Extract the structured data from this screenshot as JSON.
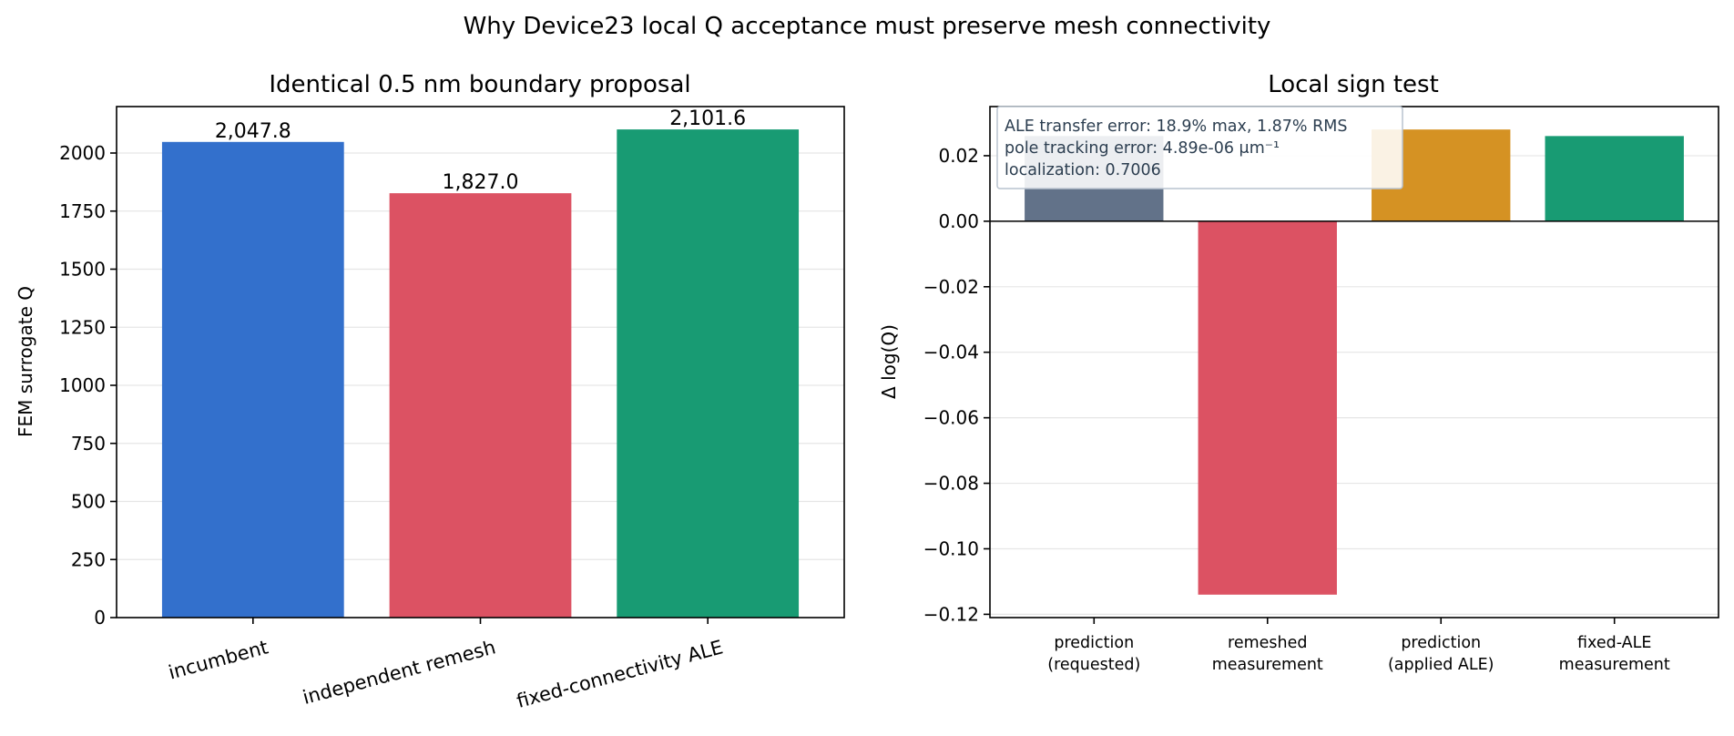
{
  "figure": {
    "title": "Why Device23 local Q acceptance must preserve mesh connectivity"
  },
  "chart_data": [
    {
      "type": "bar",
      "title": "Identical 0.5 nm boundary proposal",
      "xlabel": "",
      "ylabel": "FEM surrogate Q",
      "categories": [
        "incumbent",
        "independent remesh",
        "fixed-connectivity ALE"
      ],
      "values": [
        2047.8,
        1827.0,
        2101.6
      ],
      "value_labels": [
        "2,047.8",
        "1,827.0",
        "2,101.6"
      ],
      "colors": [
        "#3370cc",
        "#dc5263",
        "#189b73"
      ],
      "ylim": [
        0,
        2200
      ],
      "yticks": [
        0,
        250,
        500,
        750,
        1000,
        1250,
        1500,
        1750,
        2000
      ],
      "ytick_labels": [
        "0",
        "250",
        "500",
        "750",
        "1000",
        "1250",
        "1500",
        "1750",
        "2000"
      ],
      "grid": true
    },
    {
      "type": "bar",
      "title": "Local sign test",
      "xlabel": "",
      "ylabel": "Δ log(Q)",
      "categories": [
        [
          "prediction",
          "(requested)"
        ],
        [
          "remeshed",
          "measurement"
        ],
        [
          "prediction",
          "(applied ALE)"
        ],
        [
          "fixed-ALE",
          "measurement"
        ]
      ],
      "values": [
        0.026,
        -0.114,
        0.028,
        0.026
      ],
      "colors": [
        "#627289",
        "#dc5263",
        "#d59223",
        "#189b73"
      ],
      "ylim": [
        -0.121,
        0.035
      ],
      "yticks": [
        0.02,
        0.0,
        -0.02,
        -0.04,
        -0.06,
        -0.08,
        -0.1,
        -0.12
      ],
      "ytick_labels": [
        "0.02",
        "0.00",
        "−0.02",
        "−0.04",
        "−0.06",
        "−0.08",
        "−0.10",
        "−0.12"
      ],
      "zero_line": true,
      "grid": true,
      "annotation": [
        "ALE transfer error: 18.9% max, 1.87% RMS",
        "pole tracking error: 4.89e-06 μm⁻¹",
        "localization: 0.7006"
      ]
    }
  ]
}
